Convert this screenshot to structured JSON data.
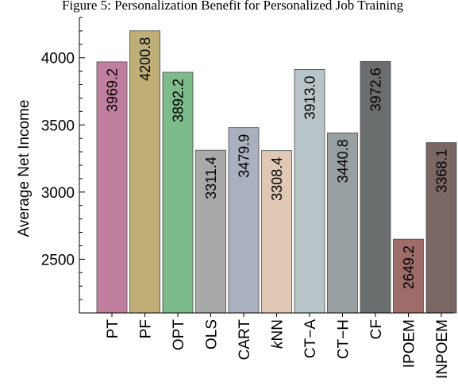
{
  "chart_data": {
    "type": "bar",
    "title": "Figure 5: Personalization Benefit for Personalized Job Training",
    "xlabel": "",
    "ylabel": "Average Net Income",
    "ylim": [
      2100,
      4300
    ],
    "yticks": [
      2500,
      3000,
      3500,
      4000
    ],
    "grid": false,
    "categories": [
      "PT",
      "PF",
      "OPT",
      "OLS",
      "CART",
      "kNN",
      "CT−A",
      "CT−H",
      "CF",
      "IPOEM",
      "INPOEM"
    ],
    "values": [
      3969.2,
      4200.8,
      3892.2,
      3311.4,
      3479.9,
      3308.4,
      3913.0,
      3440.8,
      3972.6,
      2649.2,
      3368.1
    ],
    "value_labels": [
      "3969.2",
      "4200.8",
      "3892.2",
      "3311.4",
      "3479.9",
      "3308.4",
      "3913.0",
      "3440.8",
      "3972.6",
      "2649.2",
      "3368.1"
    ],
    "colors": [
      "#c17fa0",
      "#bfae76",
      "#7dbb8a",
      "#a9a9a9",
      "#aab1be",
      "#e0c8b5",
      "#b8c4c7",
      "#979fa0",
      "#6b6e6f",
      "#9e6c6a",
      "#7a6763"
    ]
  }
}
